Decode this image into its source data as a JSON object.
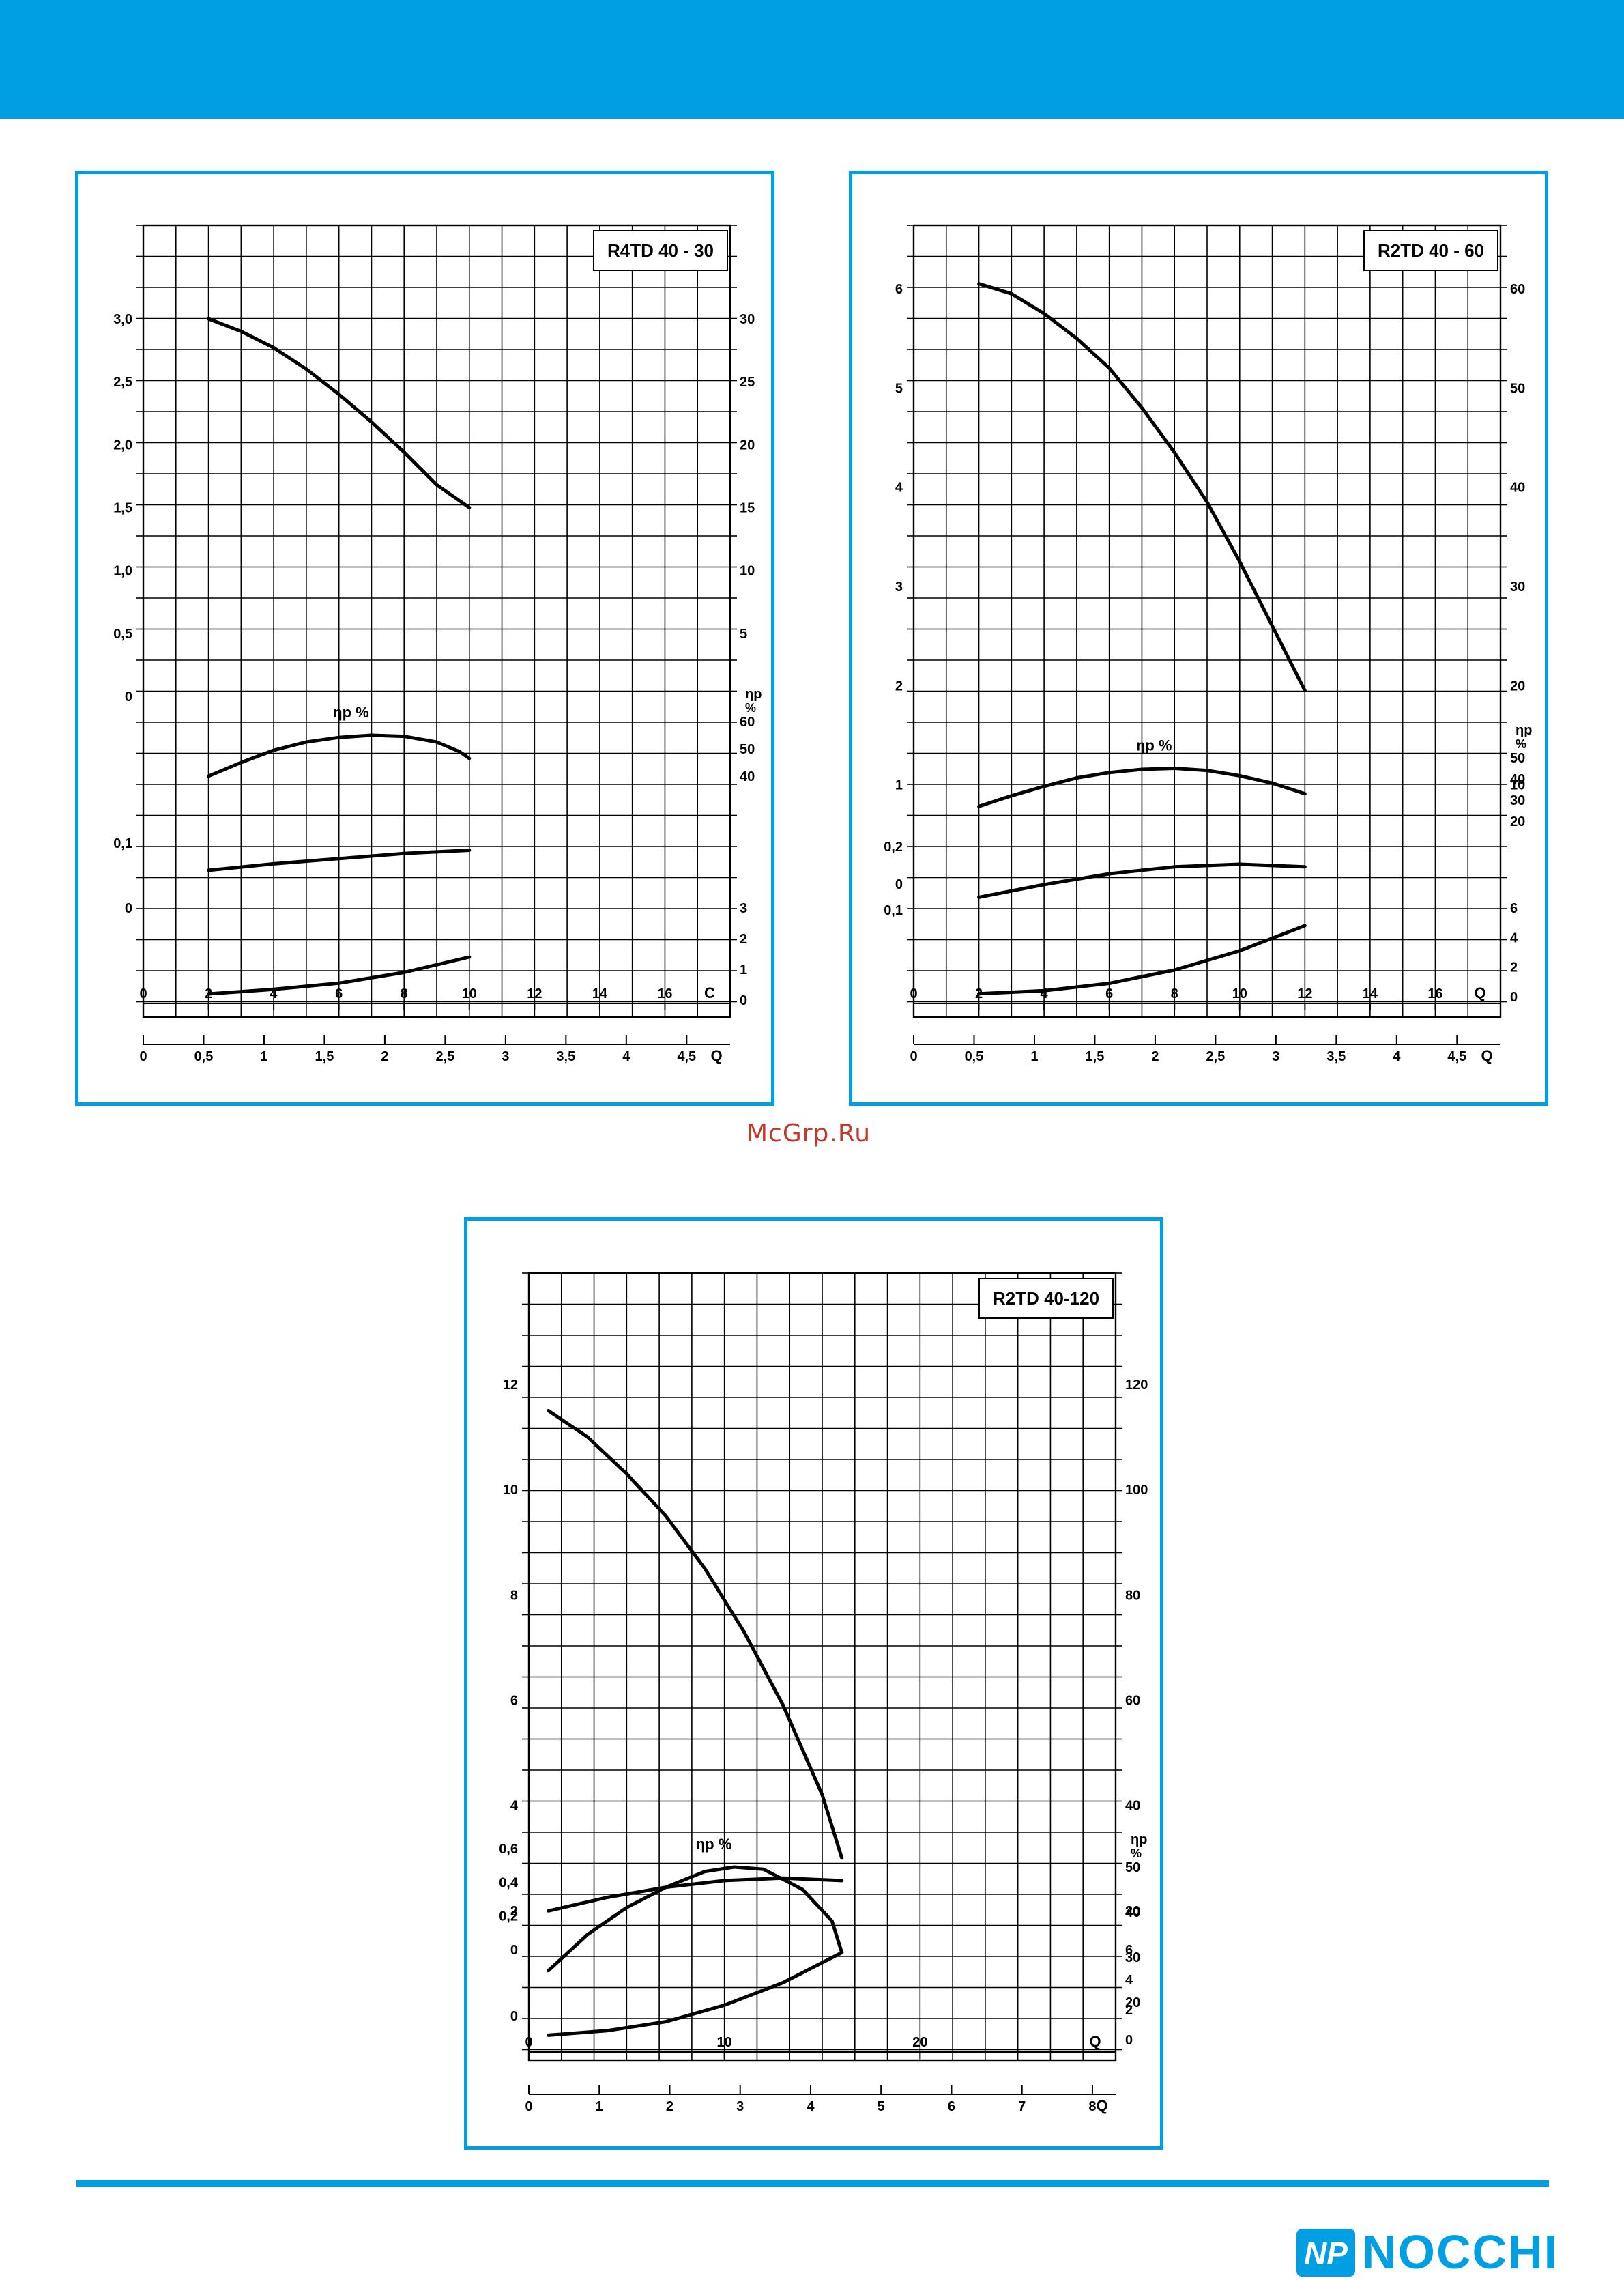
{
  "brand": {
    "name": "NOCCHI",
    "mark": "NP",
    "color": "#009fe3"
  },
  "watermark": "McGrp.Ru",
  "chart_data": [
    {
      "type": "line",
      "title": "R4TD 40 - 30",
      "eta_label": "ηp %",
      "q_primary_label": "C",
      "q_secondary_label": "Q",
      "x": {
        "ticks": [
          "0",
          "2",
          "4",
          "6",
          "8",
          "10",
          "12",
          "14",
          "16"
        ],
        "range": [
          0,
          18
        ]
      },
      "x2": {
        "ticks": [
          "0",
          "0,5",
          "1",
          "1,5",
          "2",
          "2,5",
          "3",
          "3,5",
          "4",
          "4,5"
        ],
        "range": [
          0,
          4.86
        ]
      },
      "head_left": {
        "ticks": [
          "0",
          "0,5",
          "1,0",
          "1,5",
          "2,0",
          "2,5",
          "3,0"
        ],
        "range": [
          0,
          3.0
        ]
      },
      "head_right": {
        "ticks": [
          "5",
          "10",
          "15",
          "20",
          "25",
          "30"
        ],
        "range": [
          0,
          30
        ]
      },
      "eff": {
        "ticks": [
          "40",
          "50",
          "60"
        ],
        "range": [
          40,
          60
        ]
      },
      "power": {
        "ticks": [
          "0",
          "0,1"
        ],
        "range": [
          0,
          0.1
        ]
      },
      "npsh": {
        "ticks": [
          "0",
          "1",
          "2",
          "3"
        ],
        "range": [
          0,
          3
        ]
      },
      "series": [
        {
          "role": "head",
          "x": [
            2,
            3,
            4,
            5,
            6,
            7,
            8,
            9,
            10
          ],
          "y": [
            30,
            29,
            27.7,
            26,
            24,
            21.8,
            19.4,
            16.8,
            15
          ]
        },
        {
          "role": "efficiency",
          "x": [
            2,
            3,
            4,
            5,
            6,
            7,
            8,
            9,
            9.7,
            10
          ],
          "y": [
            40,
            45,
            49.5,
            52.5,
            54.2,
            55,
            54.6,
            52.5,
            49,
            46.5
          ]
        },
        {
          "role": "power",
          "x": [
            2,
            4,
            6,
            8,
            10
          ],
          "y": [
            0.058,
            0.068,
            0.076,
            0.084,
            0.089
          ]
        },
        {
          "role": "npsh",
          "x": [
            2,
            4,
            6,
            8,
            10
          ],
          "y": [
            0.2,
            0.35,
            0.55,
            0.9,
            1.4
          ]
        }
      ]
    },
    {
      "type": "line",
      "title": "R2TD 40 - 60",
      "eta_label": "ηp %",
      "q_primary_label": "Q",
      "q_secondary_label": "Q",
      "x": {
        "ticks": [
          "0",
          "2",
          "4",
          "6",
          "8",
          "10",
          "12",
          "14",
          "16"
        ],
        "range": [
          0,
          18
        ]
      },
      "x2": {
        "ticks": [
          "0",
          "0,5",
          "1",
          "1,5",
          "2",
          "2,5",
          "3",
          "3,5",
          "4",
          "4,5"
        ],
        "range": [
          0,
          4.86
        ]
      },
      "head_left": {
        "ticks": [
          "0",
          "1",
          "2",
          "3",
          "4",
          "5",
          "6"
        ],
        "range": [
          0,
          6
        ]
      },
      "head_right": {
        "ticks": [
          "10",
          "20",
          "30",
          "40",
          "50",
          "60"
        ],
        "range": [
          0,
          60
        ]
      },
      "eff": {
        "ticks": [
          "20",
          "30",
          "40",
          "50"
        ],
        "range": [
          20,
          50
        ]
      },
      "power": {
        "ticks": [
          "0,1",
          "0,2"
        ],
        "range": [
          0.1,
          0.2
        ]
      },
      "npsh": {
        "ticks": [
          "0",
          "2",
          "4",
          "6"
        ],
        "range": [
          0,
          6
        ]
      },
      "series": [
        {
          "role": "head",
          "x": [
            2,
            3,
            4,
            5,
            6,
            7,
            8,
            9,
            10,
            11,
            12
          ],
          "y": [
            60.5,
            59.5,
            57.5,
            55,
            52,
            48,
            43.5,
            38.5,
            32.5,
            26,
            19.5
          ]
        },
        {
          "role": "efficiency",
          "x": [
            2,
            3,
            4,
            5,
            6,
            7,
            8,
            9,
            10,
            11,
            12
          ],
          "y": [
            27,
            32,
            36.5,
            40.5,
            43,
            44.5,
            45,
            44,
            41.5,
            38,
            33
          ]
        },
        {
          "role": "power",
          "x": [
            2,
            4,
            6,
            8,
            10,
            12
          ],
          "y": [
            0.12,
            0.14,
            0.157,
            0.168,
            0.172,
            0.168
          ]
        },
        {
          "role": "npsh",
          "x": [
            2,
            4,
            6,
            8,
            10,
            12
          ],
          "y": [
            0.2,
            0.4,
            0.9,
            1.8,
            3.1,
            4.8
          ]
        }
      ]
    },
    {
      "type": "line",
      "title": "R2TD 40-120",
      "eta_label": "ηp %",
      "q_primary_label": "Q",
      "q_secondary_label": "Q",
      "x": {
        "ticks": [
          "0",
          "10",
          "20"
        ],
        "range": [
          0,
          30
        ]
      },
      "x2": {
        "ticks": [
          "0",
          "1",
          "2",
          "3",
          "4",
          "5",
          "6",
          "7",
          "8"
        ],
        "range": [
          0,
          8.33
        ]
      },
      "head_left": {
        "ticks": [
          "0",
          "2",
          "4",
          "6",
          "8",
          "10",
          "12"
        ],
        "range": [
          0,
          12
        ]
      },
      "head_right": {
        "ticks": [
          "20",
          "40",
          "60",
          "80",
          "100",
          "120"
        ],
        "range": [
          0,
          120
        ]
      },
      "eff": {
        "ticks": [
          "20",
          "30",
          "40",
          "50"
        ],
        "range": [
          20,
          50
        ]
      },
      "power": {
        "ticks": [
          "0",
          "0,2",
          "0,4",
          "0,6"
        ],
        "range": [
          0,
          0.6
        ]
      },
      "npsh": {
        "ticks": [
          "0",
          "2",
          "4",
          "6"
        ],
        "range": [
          0,
          6
        ]
      },
      "series": [
        {
          "role": "head",
          "x": [
            1,
            3,
            5,
            7,
            9,
            11,
            13,
            15,
            16
          ],
          "y": [
            115,
            110,
            103,
            95,
            85,
            73,
            59,
            42,
            30
          ]
        },
        {
          "role": "efficiency",
          "x": [
            1,
            3,
            5,
            7,
            9,
            10.5,
            12,
            14,
            15.5,
            16
          ],
          "y": [
            27,
            35,
            41,
            45.5,
            49,
            50,
            49.5,
            45,
            38,
            31
          ]
        },
        {
          "role": "power",
          "x": [
            1,
            4,
            7,
            10,
            13,
            16
          ],
          "y": [
            0.23,
            0.31,
            0.37,
            0.41,
            0.425,
            0.41
          ]
        },
        {
          "role": "npsh",
          "x": [
            1,
            4,
            7,
            10,
            13,
            16
          ],
          "y": [
            0.3,
            0.6,
            1.2,
            2.3,
            3.8,
            5.8
          ]
        }
      ]
    }
  ]
}
